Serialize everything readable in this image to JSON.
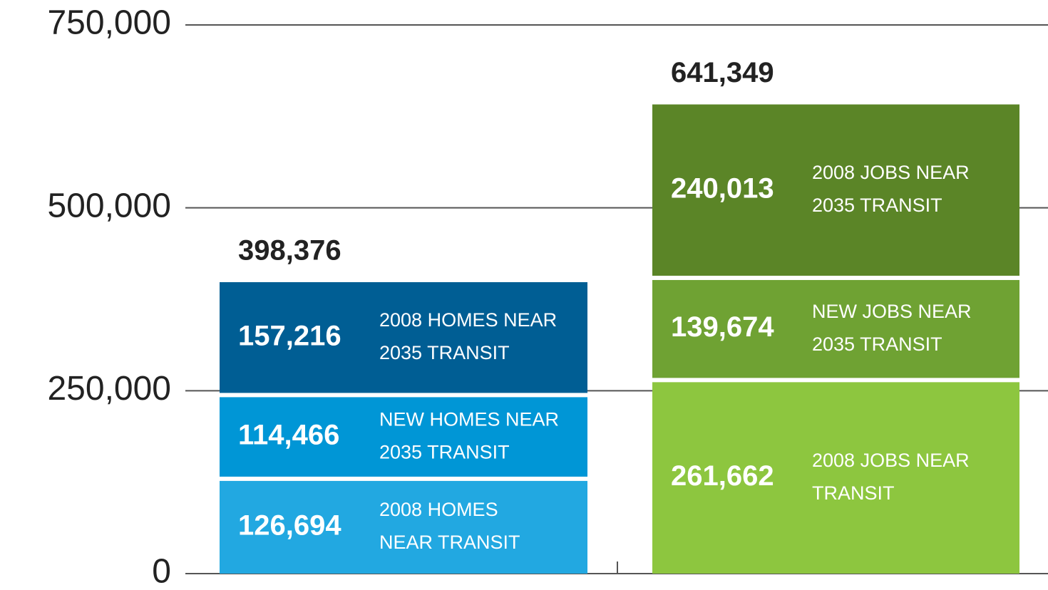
{
  "chart_data": {
    "type": "stacked-bar",
    "ylim": [
      0,
      750000
    ],
    "yticks": [
      0,
      {
        "value": 250000,
        "label": "250,000"
      },
      {
        "value": 500000,
        "label": "500,000"
      },
      {
        "value": 750000,
        "label": "750,000"
      }
    ],
    "grid": true,
    "bars": [
      {
        "total": 398376,
        "total_label": "398,376",
        "segments": [
          {
            "name": [
              "2008 HOMES",
              "NEAR TRANSIT"
            ],
            "value": 126694,
            "value_label": "126,694",
            "color": "#22a8e1"
          },
          {
            "name": [
              "NEW HOMES NEAR",
              "2035 TRANSIT"
            ],
            "value": 114466,
            "value_label": "114,466",
            "color": "#0096d6"
          },
          {
            "name": [
              "2008 HOMES NEAR",
              "2035 TRANSIT"
            ],
            "value": 157216,
            "value_label": "157,216",
            "color": "#005e94"
          }
        ]
      },
      {
        "total": 641349,
        "total_label": "641,349",
        "segments": [
          {
            "name": [
              "2008 JOBS NEAR",
              "TRANSIT"
            ],
            "value": 261662,
            "value_label": "261,662",
            "color": "#8dc63f"
          },
          {
            "name": [
              "NEW JOBS NEAR",
              "2035 TRANSIT"
            ],
            "value": 139674,
            "value_label": "139,674",
            "color": "#6fa233"
          },
          {
            "name": [
              "2008 JOBS NEAR",
              "2035 TRANSIT"
            ],
            "value": 240013,
            "value_label": "240,013",
            "color": "#5b8527"
          }
        ]
      }
    ]
  }
}
